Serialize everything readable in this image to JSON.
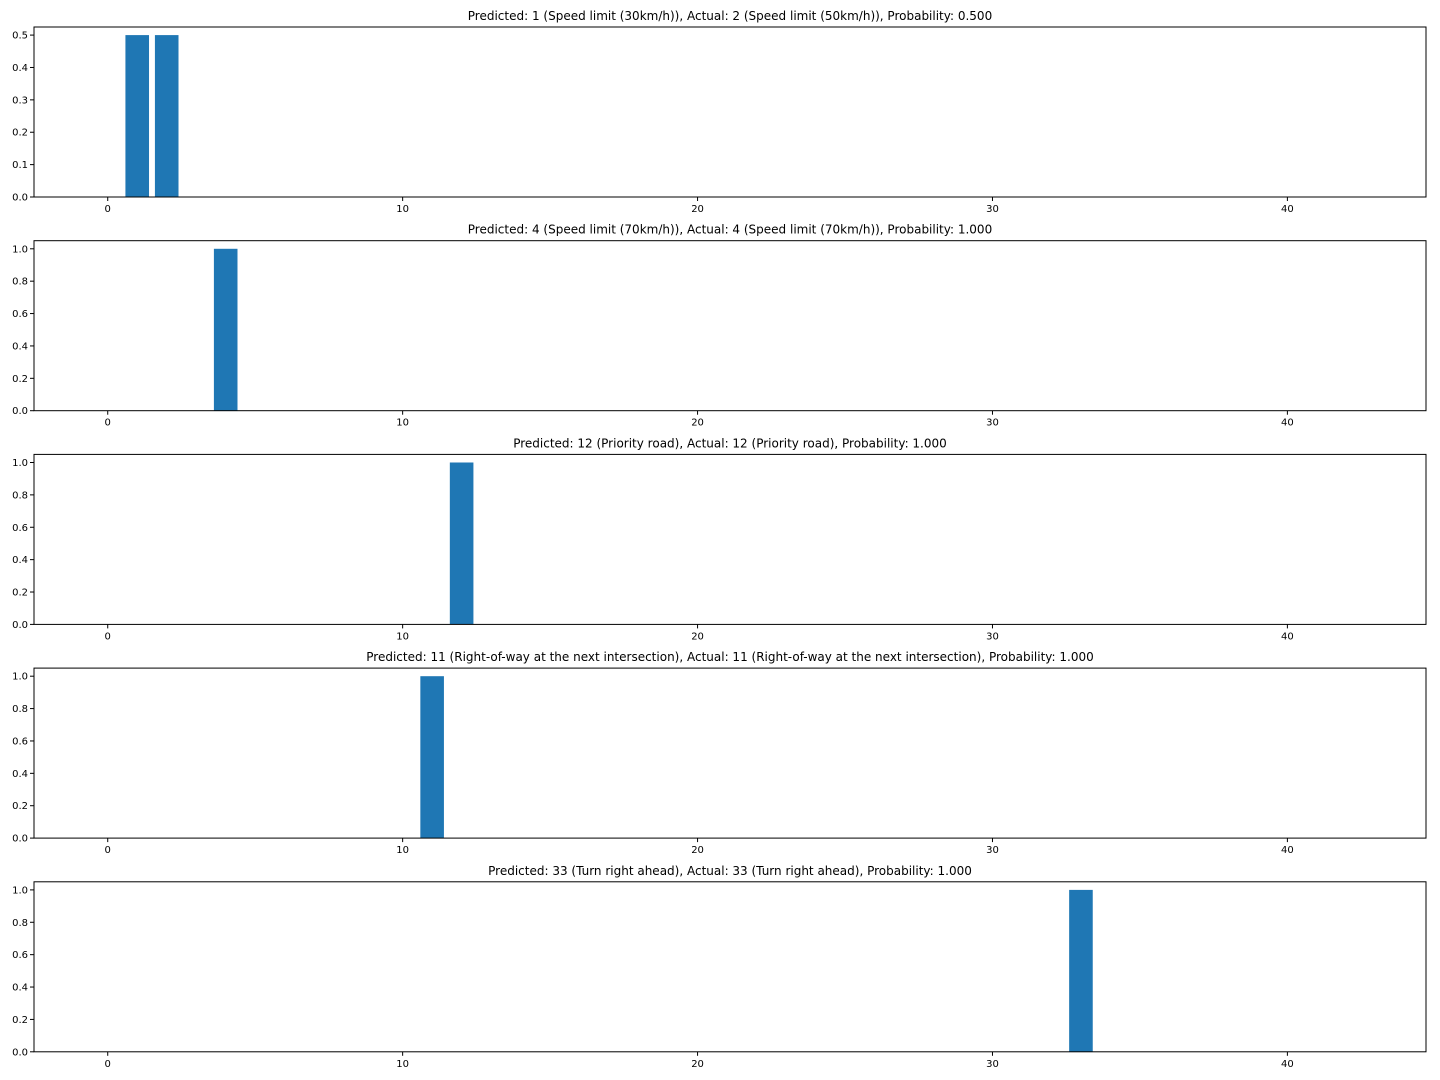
{
  "chart_data": [
    {
      "type": "bar",
      "title": "Predicted: 1 (Speed limit (30km/h)), Actual: 2 (Speed limit (50km/h)), Probability: 0.500",
      "xlim": [
        -2.5,
        44.7
      ],
      "ylim": [
        0,
        0.525
      ],
      "xticks": [
        0,
        10,
        20,
        30,
        40
      ],
      "yticks": [
        0.0,
        0.1,
        0.2,
        0.3,
        0.4,
        0.5
      ],
      "bars": [
        {
          "x": 1,
          "value": 0.5
        },
        {
          "x": 2,
          "value": 0.5
        }
      ],
      "color": "#1f77b4"
    },
    {
      "type": "bar",
      "title": "Predicted: 4 (Speed limit (70km/h)), Actual: 4 (Speed limit (70km/h)), Probability: 1.000",
      "xlim": [
        -2.5,
        44.7
      ],
      "ylim": [
        0,
        1.05
      ],
      "xticks": [
        0,
        10,
        20,
        30,
        40
      ],
      "yticks": [
        0.0,
        0.2,
        0.4,
        0.6,
        0.8,
        1.0
      ],
      "bars": [
        {
          "x": 4,
          "value": 1.0
        }
      ],
      "color": "#1f77b4"
    },
    {
      "type": "bar",
      "title": "Predicted: 12 (Priority road), Actual: 12 (Priority road), Probability: 1.000",
      "xlim": [
        -2.5,
        44.7
      ],
      "ylim": [
        0,
        1.05
      ],
      "xticks": [
        0,
        10,
        20,
        30,
        40
      ],
      "yticks": [
        0.0,
        0.2,
        0.4,
        0.6,
        0.8,
        1.0
      ],
      "bars": [
        {
          "x": 12,
          "value": 1.0
        }
      ],
      "color": "#1f77b4"
    },
    {
      "type": "bar",
      "title": "Predicted: 11 (Right-of-way at the next intersection), Actual: 11 (Right-of-way at the next intersection), Probability: 1.000",
      "xlim": [
        -2.5,
        44.7
      ],
      "ylim": [
        0,
        1.05
      ],
      "xticks": [
        0,
        10,
        20,
        30,
        40
      ],
      "yticks": [
        0.0,
        0.2,
        0.4,
        0.6,
        0.8,
        1.0
      ],
      "bars": [
        {
          "x": 11,
          "value": 1.0
        }
      ],
      "color": "#1f77b4"
    },
    {
      "type": "bar",
      "title": "Predicted: 33 (Turn right ahead), Actual: 33 (Turn right ahead), Probability: 1.000",
      "xlim": [
        -2.5,
        44.7
      ],
      "ylim": [
        0,
        1.05
      ],
      "xticks": [
        0,
        10,
        20,
        30,
        40
      ],
      "yticks": [
        0.0,
        0.2,
        0.4,
        0.6,
        0.8,
        1.0
      ],
      "bars": [
        {
          "x": 33,
          "value": 1.0
        }
      ],
      "color": "#1f77b4"
    }
  ]
}
